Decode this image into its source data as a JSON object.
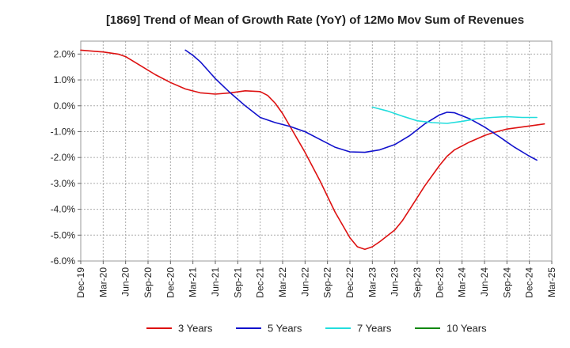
{
  "chart_data": {
    "type": "line",
    "title": "[1869]  Trend of Mean of Growth Rate (YoY) of 12Mo Mov Sum of Revenues",
    "xlabel": "",
    "ylabel": "",
    "ylim": [
      -6.0,
      2.5
    ],
    "yticks": [
      2.0,
      1.0,
      0.0,
      -1.0,
      -2.0,
      -3.0,
      -4.0,
      -5.0,
      -6.0
    ],
    "ytick_labels": [
      "2.0%",
      "1.0%",
      "0.0%",
      "-1.0%",
      "-2.0%",
      "-3.0%",
      "-4.0%",
      "-5.0%",
      "-6.0%"
    ],
    "x_range": [
      0,
      63
    ],
    "xtick_positions": [
      0,
      3,
      6,
      9,
      12,
      15,
      18,
      21,
      24,
      27,
      30,
      33,
      36,
      39,
      42,
      45,
      48,
      51,
      54,
      57,
      60,
      63
    ],
    "xtick_labels": [
      "Dec-19",
      "Mar-20",
      "Jun-20",
      "Sep-20",
      "Dec-20",
      "Mar-21",
      "Jun-21",
      "Sep-21",
      "Dec-21",
      "Mar-22",
      "Jun-22",
      "Sep-22",
      "Dec-22",
      "Mar-23",
      "Jun-23",
      "Sep-23",
      "Dec-23",
      "Mar-24",
      "Jun-24",
      "Sep-24",
      "Dec-24",
      "Mar-25"
    ],
    "grid": true,
    "legend_position": "bottom",
    "series": [
      {
        "name": "3 Years",
        "color": "#dd1111",
        "points": [
          [
            0,
            2.15
          ],
          [
            3,
            2.08
          ],
          [
            5,
            2.0
          ],
          [
            6,
            1.9
          ],
          [
            8,
            1.55
          ],
          [
            10,
            1.2
          ],
          [
            12,
            0.9
          ],
          [
            14,
            0.65
          ],
          [
            16,
            0.5
          ],
          [
            18,
            0.45
          ],
          [
            20,
            0.5
          ],
          [
            22,
            0.58
          ],
          [
            24,
            0.55
          ],
          [
            25,
            0.4
          ],
          [
            26,
            0.1
          ],
          [
            27,
            -0.3
          ],
          [
            28,
            -0.8
          ],
          [
            30,
            -1.8
          ],
          [
            32,
            -2.9
          ],
          [
            34,
            -4.1
          ],
          [
            36,
            -5.1
          ],
          [
            37,
            -5.45
          ],
          [
            38,
            -5.55
          ],
          [
            39,
            -5.45
          ],
          [
            40,
            -5.25
          ],
          [
            42,
            -4.8
          ],
          [
            43,
            -4.45
          ],
          [
            44,
            -4.0
          ],
          [
            46,
            -3.1
          ],
          [
            48,
            -2.3
          ],
          [
            49,
            -1.95
          ],
          [
            50,
            -1.7
          ],
          [
            52,
            -1.4
          ],
          [
            54,
            -1.15
          ],
          [
            55,
            -1.05
          ],
          [
            57,
            -0.9
          ],
          [
            60,
            -0.78
          ],
          [
            62,
            -0.7
          ]
        ]
      },
      {
        "name": "5 Years",
        "color": "#1111cc",
        "points": [
          [
            14,
            2.15
          ],
          [
            15,
            1.95
          ],
          [
            16,
            1.7
          ],
          [
            18,
            1.05
          ],
          [
            20,
            0.5
          ],
          [
            22,
            0.0
          ],
          [
            24,
            -0.45
          ],
          [
            26,
            -0.65
          ],
          [
            28,
            -0.8
          ],
          [
            30,
            -1.0
          ],
          [
            32,
            -1.3
          ],
          [
            34,
            -1.6
          ],
          [
            36,
            -1.78
          ],
          [
            38,
            -1.8
          ],
          [
            40,
            -1.7
          ],
          [
            42,
            -1.5
          ],
          [
            44,
            -1.15
          ],
          [
            46,
            -0.7
          ],
          [
            48,
            -0.35
          ],
          [
            49,
            -0.25
          ],
          [
            50,
            -0.27
          ],
          [
            52,
            -0.5
          ],
          [
            54,
            -0.82
          ],
          [
            56,
            -1.2
          ],
          [
            58,
            -1.6
          ],
          [
            60,
            -1.95
          ],
          [
            61,
            -2.1
          ]
        ]
      },
      {
        "name": "7 Years",
        "color": "#22dddd",
        "points": [
          [
            39,
            -0.05
          ],
          [
            41,
            -0.2
          ],
          [
            43,
            -0.4
          ],
          [
            45,
            -0.58
          ],
          [
            47,
            -0.65
          ],
          [
            49,
            -0.68
          ],
          [
            51,
            -0.6
          ],
          [
            53,
            -0.5
          ],
          [
            55,
            -0.45
          ],
          [
            57,
            -0.42
          ],
          [
            59,
            -0.45
          ],
          [
            61,
            -0.45
          ]
        ]
      },
      {
        "name": "10 Years",
        "color": "#118811",
        "points": []
      }
    ]
  }
}
